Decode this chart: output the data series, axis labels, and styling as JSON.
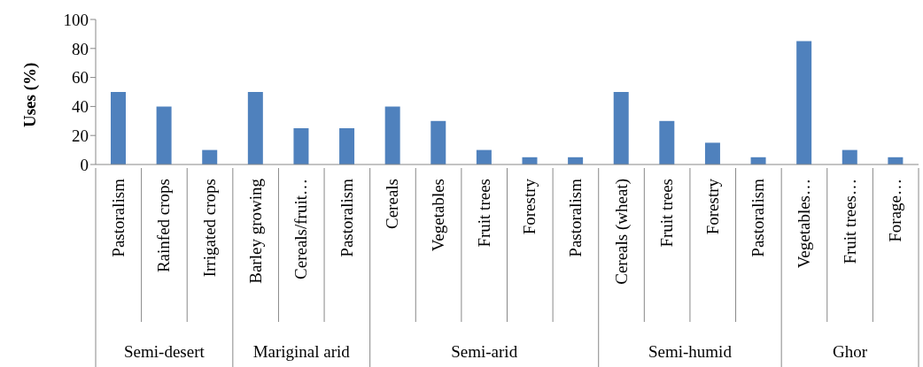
{
  "chart_data": {
    "type": "bar",
    "ylabel": "Uses (%)",
    "categories": [
      "Pastoralism",
      "Rainfed crops",
      "Irrigated crops",
      "Barley growing",
      "Cereals/fruit…",
      "Pastoralism",
      "Cereals",
      "Vegetables",
      "Fruit trees",
      "Forestry",
      "Pastoralism",
      "Cereals (wheat)",
      "Fruit trees",
      "Forestry",
      "Pastoralism",
      "Vegetables…",
      "Fruit trees…",
      "Forage…"
    ],
    "values": [
      50,
      40,
      10,
      50,
      25,
      25,
      40,
      30,
      10,
      5,
      5,
      50,
      30,
      15,
      5,
      85,
      10,
      5
    ],
    "color": "#4f81bd",
    "ylim": [
      0,
      100
    ],
    "yticks": [
      0,
      20,
      40,
      60,
      80,
      100
    ],
    "annotations": [
      "Semi-desert",
      "Mariginal arid",
      "Semi-arid",
      "Semi-humid",
      "Ghor"
    ]
  }
}
